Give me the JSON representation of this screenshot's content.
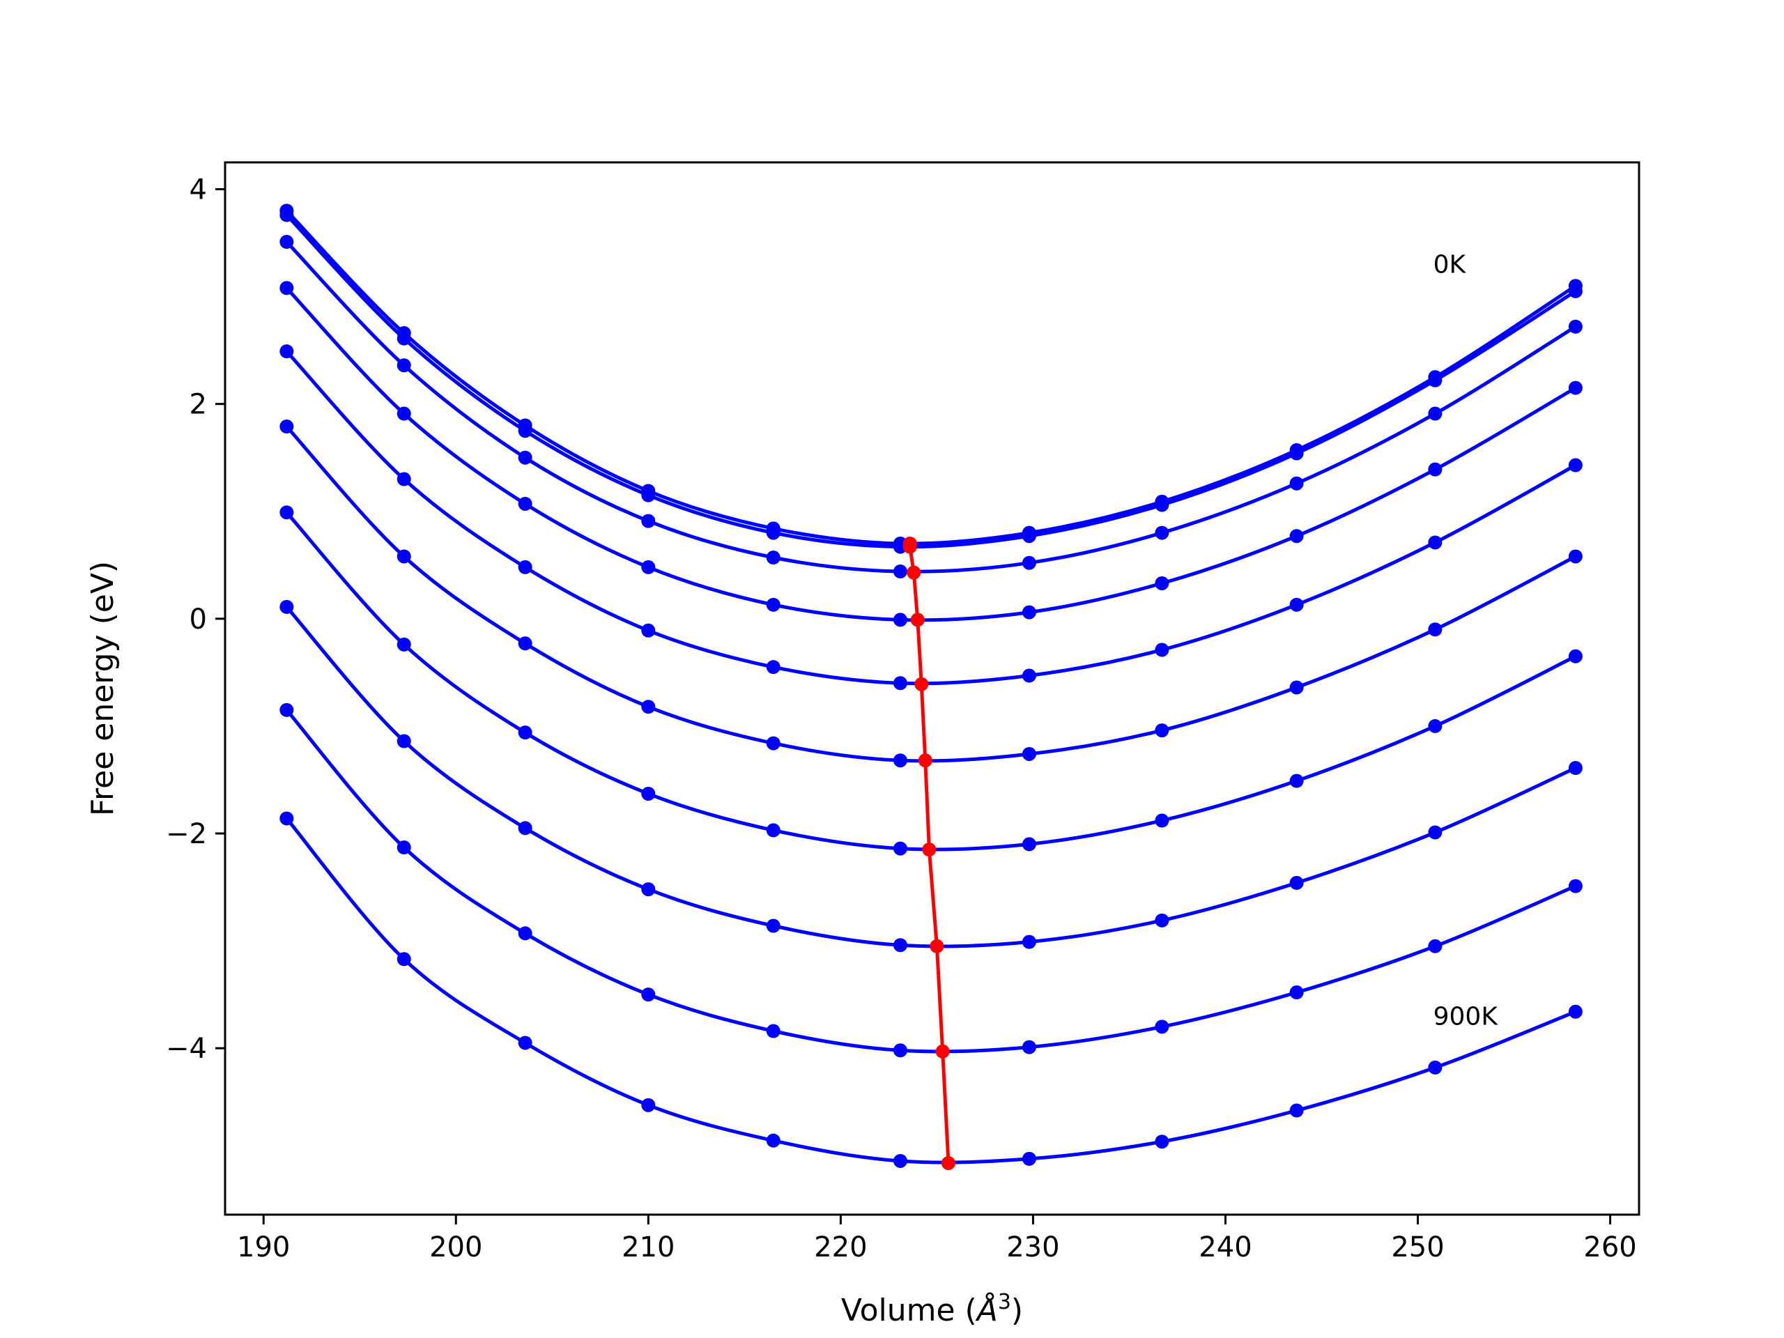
{
  "chart_data": {
    "type": "line",
    "title": "",
    "xlabel_main": "Volume (",
    "xlabel_unit": "Å",
    "xlabel_sup": "3",
    "xlabel_close": ")",
    "ylabel": "Free energy (eV)",
    "xlim": [
      188,
      261.5
    ],
    "ylim": [
      -5.55,
      4.25
    ],
    "xticks": [
      190,
      200,
      210,
      220,
      230,
      240,
      250,
      260
    ],
    "xtick_labels": [
      "190",
      "200",
      "210",
      "220",
      "230",
      "240",
      "250",
      "260"
    ],
    "yticks": [
      -4,
      -2,
      0,
      2,
      4
    ],
    "ytick_labels": [
      "−4",
      "−2",
      "0",
      "2",
      "4"
    ],
    "grid": false,
    "series_color": "#0000ff",
    "minimum_color": "#ff0000",
    "volumes": [
      191.2,
      197.3,
      203.6,
      210.0,
      216.5,
      223.1,
      229.8,
      236.7,
      243.7,
      250.9,
      258.2
    ],
    "series": [
      {
        "values": [
          3.8,
          2.66,
          1.8,
          1.19,
          0.84,
          0.7,
          0.8,
          1.09,
          1.57,
          2.25,
          3.1
        ],
        "min": [
          223.6,
          0.7
        ]
      },
      {
        "values": [
          3.76,
          2.61,
          1.75,
          1.15,
          0.8,
          0.67,
          0.77,
          1.06,
          1.54,
          2.22,
          3.05
        ],
        "min": [
          223.6,
          0.67
        ]
      },
      {
        "values": [
          3.51,
          2.36,
          1.5,
          0.91,
          0.57,
          0.44,
          0.52,
          0.8,
          1.26,
          1.91,
          2.72
        ],
        "min": [
          223.8,
          0.43
        ]
      },
      {
        "values": [
          3.08,
          1.91,
          1.07,
          0.48,
          0.13,
          -0.01,
          0.06,
          0.33,
          0.77,
          1.39,
          2.15
        ],
        "min": [
          224.0,
          -0.01
        ]
      },
      {
        "values": [
          2.49,
          1.3,
          0.48,
          -0.11,
          -0.45,
          -0.6,
          -0.53,
          -0.29,
          0.13,
          0.71,
          1.43
        ],
        "min": [
          224.2,
          -0.61
        ]
      },
      {
        "values": [
          1.79,
          0.58,
          -0.23,
          -0.82,
          -1.16,
          -1.32,
          -1.26,
          -1.04,
          -0.64,
          -0.1,
          0.58
        ],
        "min": [
          224.4,
          -1.32
        ]
      },
      {
        "values": [
          0.99,
          -0.24,
          -1.06,
          -1.63,
          -1.97,
          -2.14,
          -2.1,
          -1.88,
          -1.51,
          -1.0,
          -0.35
        ],
        "min": [
          224.6,
          -2.15
        ]
      },
      {
        "values": [
          0.11,
          -1.14,
          -1.95,
          -2.52,
          -2.86,
          -3.04,
          -3.01,
          -2.81,
          -2.46,
          -1.99,
          -1.39
        ],
        "min": [
          225.0,
          -3.05
        ]
      },
      {
        "values": [
          -0.85,
          -2.13,
          -2.93,
          -3.5,
          -3.84,
          -4.02,
          -3.99,
          -3.8,
          -3.48,
          -3.05,
          -2.49
        ],
        "min": [
          225.3,
          -4.03
        ]
      },
      {
        "values": [
          -1.86,
          -3.17,
          -3.95,
          -4.53,
          -4.86,
          -5.05,
          -5.03,
          -4.87,
          -4.58,
          -4.18,
          -3.66
        ],
        "min": [
          225.6,
          -5.07
        ]
      }
    ],
    "annotations": [
      {
        "text": "0K",
        "x": 250.8,
        "y": 3.22
      },
      {
        "text": "900K",
        "x": 250.8,
        "y": -3.78
      }
    ]
  }
}
